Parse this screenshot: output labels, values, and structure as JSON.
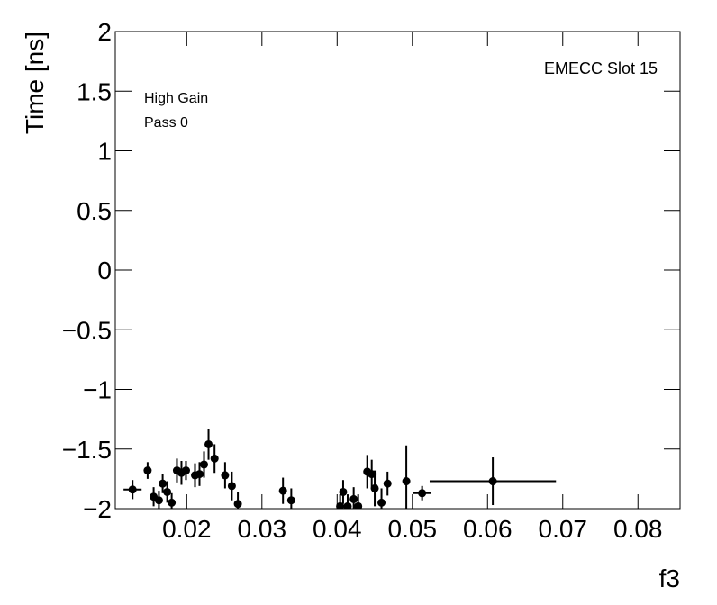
{
  "chart_data": {
    "type": "scatter",
    "xlabel": "f3",
    "ylabel": "Time [ns]",
    "annotations": [
      "High Gain",
      "Pass 0"
    ],
    "label": "EMECC Slot 15",
    "xlim": [
      0.0105,
      0.0856
    ],
    "ylim": [
      -2,
      2
    ],
    "xticks": [
      0.02,
      0.03,
      0.04,
      0.05,
      0.06,
      0.07,
      0.08
    ],
    "yticks": [
      {
        "value": -2,
        "label": "−2"
      },
      {
        "value": -1.5,
        "label": "−1.5"
      },
      {
        "value": -1,
        "label": "−1"
      },
      {
        "value": -0.5,
        "label": "−0.5"
      },
      0,
      0.5,
      1,
      1.5,
      2
    ],
    "series": [
      {
        "color": "#000000",
        "x": [
          0.0128,
          0.0148,
          0.0156,
          0.0163,
          0.0168,
          0.0174,
          0.018,
          0.0187,
          0.0193,
          0.0199,
          0.0211,
          0.0217,
          0.0223,
          0.0229,
          0.0237,
          0.0251,
          0.026,
          0.0268,
          0.0328,
          0.0339,
          0.0404,
          0.0408,
          0.0414,
          0.0422,
          0.0428,
          0.044,
          0.0446,
          0.045,
          0.0459,
          0.0467,
          0.0492,
          0.0513,
          0.0607
        ],
        "values": [
          -1.84,
          -1.68,
          -1.9,
          -1.93,
          -1.79,
          -1.86,
          -1.95,
          -1.68,
          -1.7,
          -1.68,
          -1.72,
          -1.71,
          -1.63,
          -1.46,
          -1.58,
          -1.72,
          -1.81,
          -1.96,
          -1.85,
          -1.93,
          -1.98,
          -1.86,
          -1.98,
          -1.92,
          -1.98,
          -1.69,
          -1.71,
          -1.83,
          -1.95,
          -1.79,
          -1.77,
          -1.87,
          -1.77
        ],
        "xerr": [
          0.0012,
          0.0003,
          0.0003,
          0.0003,
          0.0003,
          0.0003,
          0.0003,
          0.0003,
          0.0003,
          0.0003,
          0.0003,
          0.0003,
          0.0003,
          0.0003,
          0.0003,
          0.0003,
          0.0003,
          0.0003,
          0.0003,
          0.0003,
          0.0003,
          0.0003,
          0.0003,
          0.0003,
          0.0003,
          0.0003,
          0.0003,
          0.0003,
          0.0003,
          0.0003,
          0.0003,
          0.0012,
          0.0084
        ],
        "yerr": [
          0.08,
          0.07,
          0.08,
          0.08,
          0.08,
          0.09,
          0.08,
          0.1,
          0.1,
          0.08,
          0.1,
          0.1,
          0.11,
          0.13,
          0.12,
          0.11,
          0.12,
          0.1,
          0.11,
          0.1,
          0.1,
          0.1,
          0.1,
          0.1,
          0.1,
          0.14,
          0.12,
          0.15,
          0.12,
          0.1,
          0.3,
          0.06,
          0.2
        ]
      }
    ]
  }
}
